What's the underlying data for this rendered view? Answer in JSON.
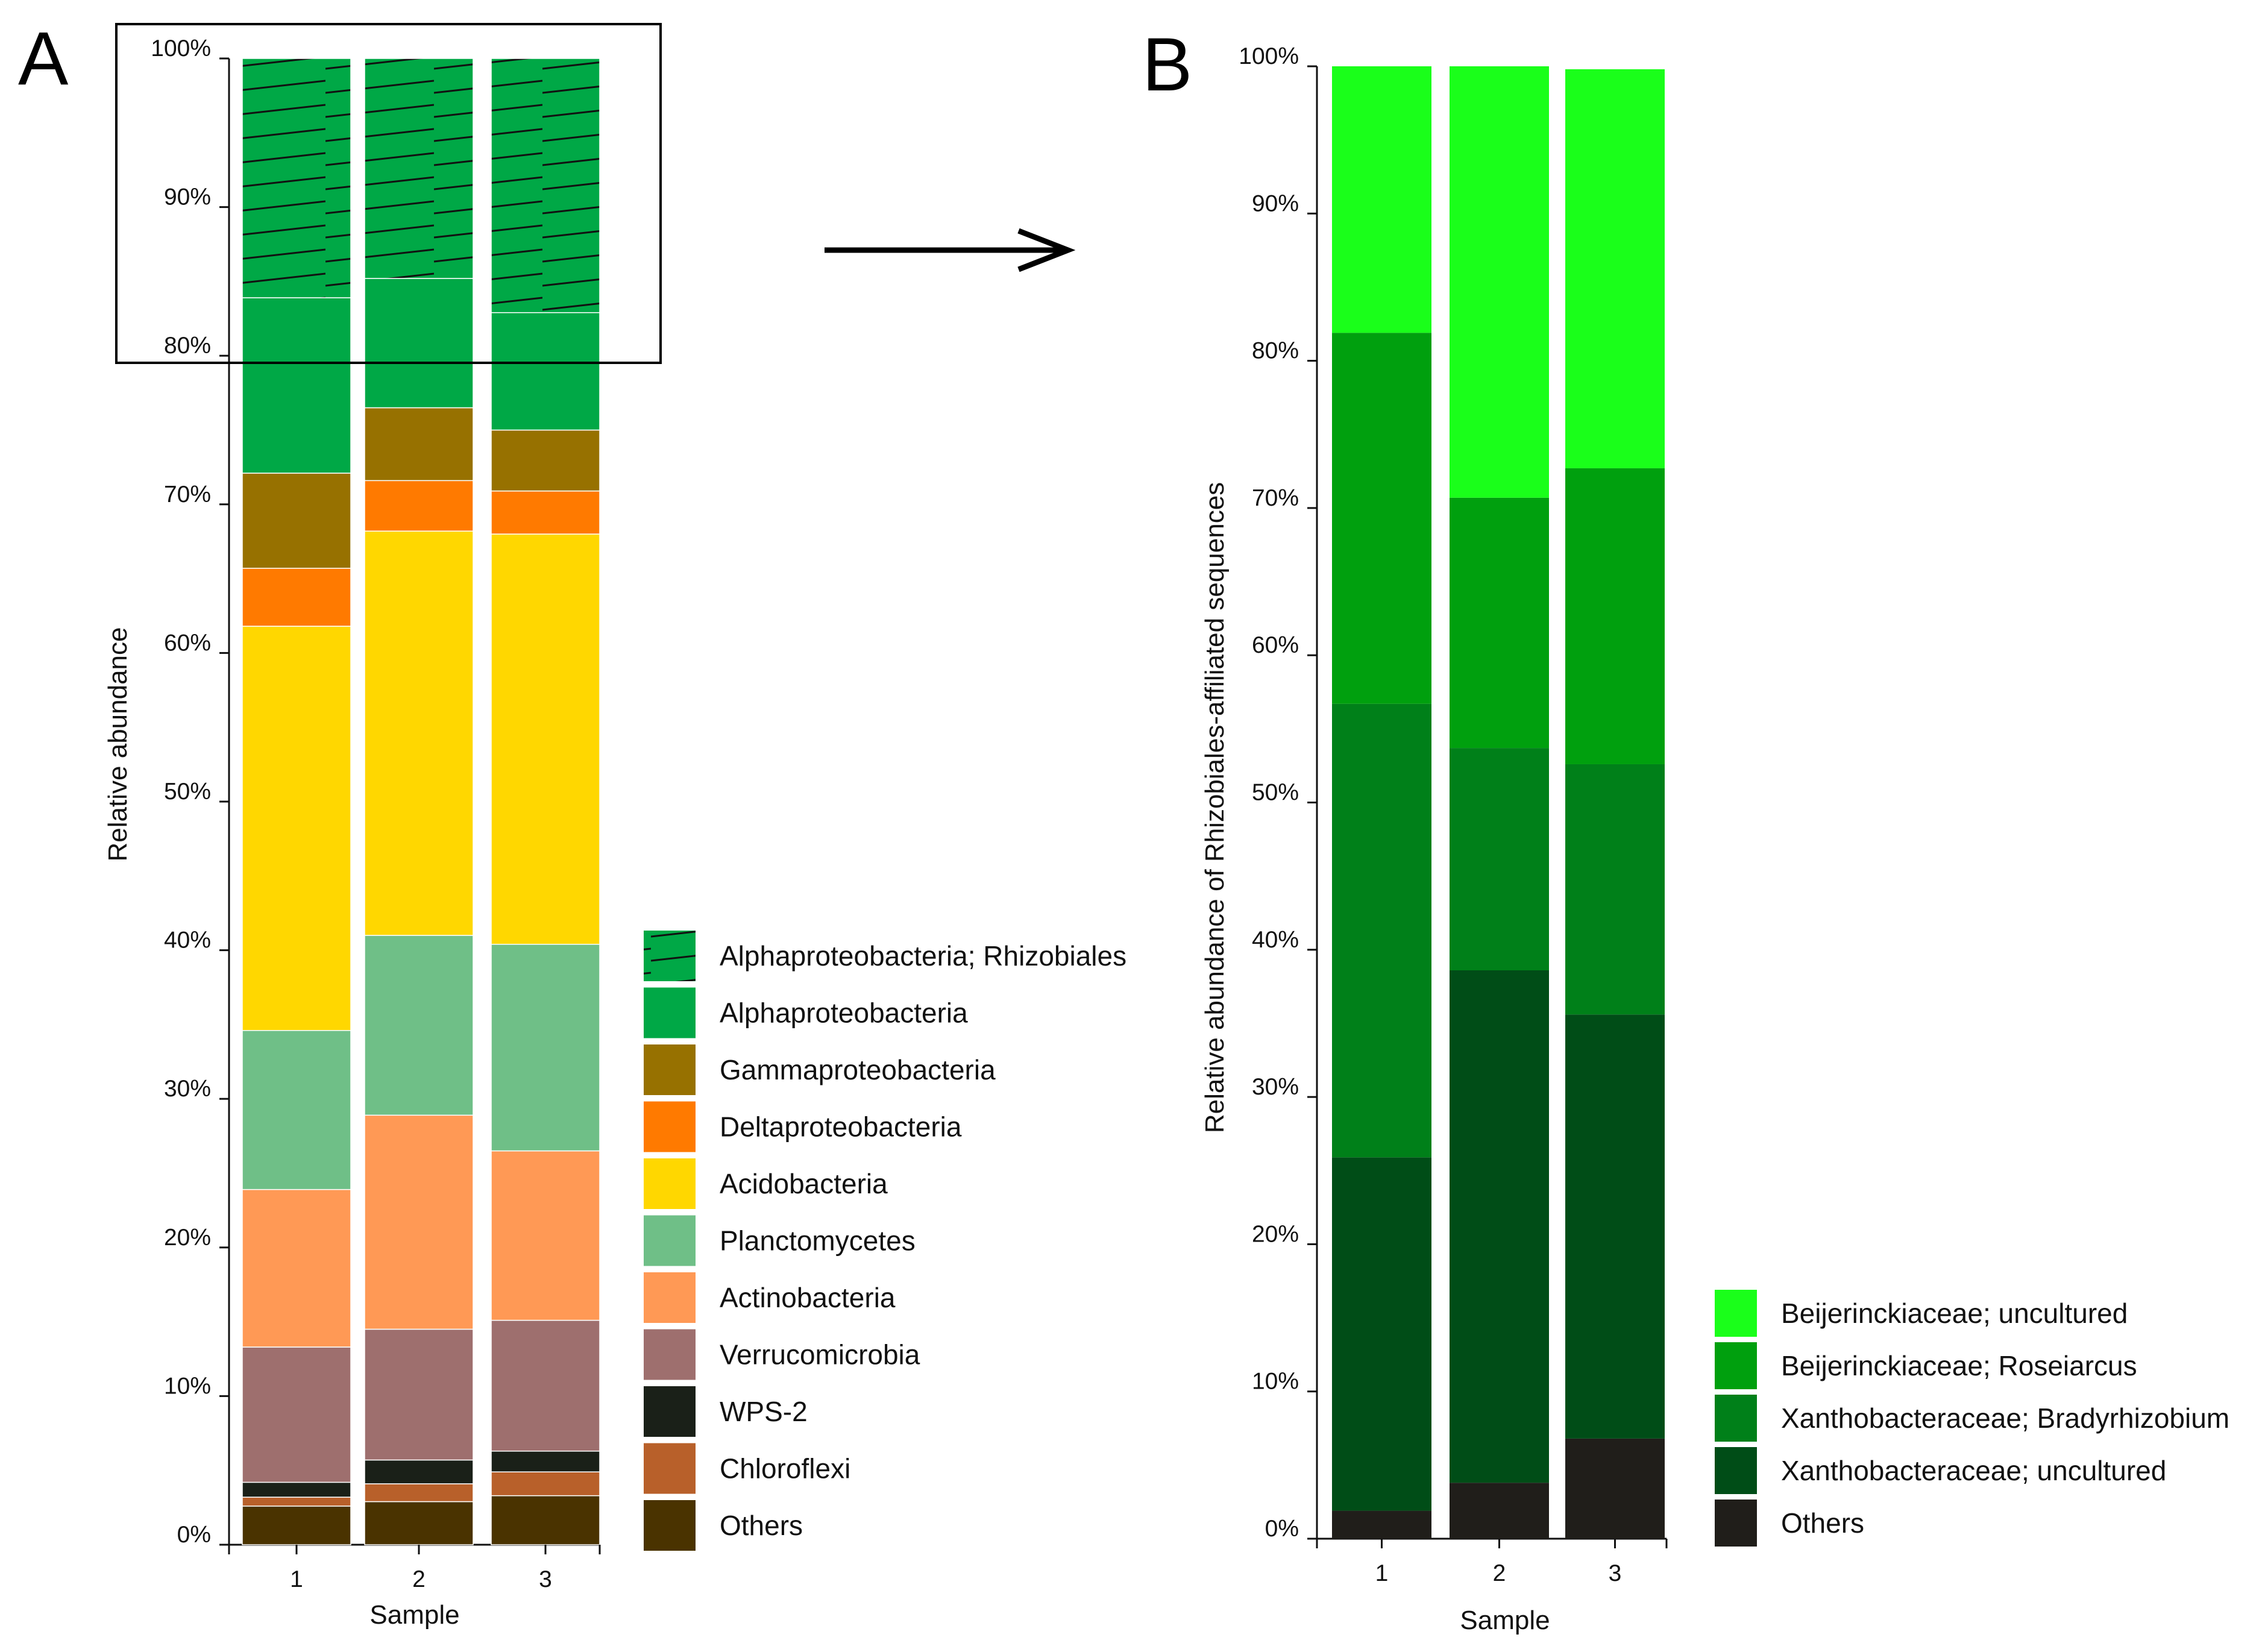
{
  "chart_data": [
    {
      "panel": "A",
      "type": "bar",
      "stacked": true,
      "xlabel": "Sample",
      "ylabel": "Relative abundance",
      "ylim": [
        0,
        100
      ],
      "yticks": [
        "0%",
        "10%",
        "20%",
        "30%",
        "40%",
        "50%",
        "60%",
        "70%",
        "80%",
        "90%",
        "100%"
      ],
      "categories": [
        "1",
        "2",
        "3"
      ],
      "series": [
        {
          "name": "Others",
          "color": "#4a3300",
          "values": [
            2.6,
            2.9,
            3.3
          ]
        },
        {
          "name": "Chloroflexi",
          "color": "#b8602a",
          "values": [
            0.6,
            1.2,
            1.6
          ]
        },
        {
          "name": "WPS-2",
          "color": "#1a2018",
          "values": [
            1.0,
            1.6,
            1.4
          ]
        },
        {
          "name": "Verrucomicrobia",
          "color": "#9e6f6e",
          "values": [
            9.1,
            8.8,
            8.8
          ]
        },
        {
          "name": "Actinobacteria",
          "color": "#ff9955",
          "values": [
            10.6,
            14.4,
            11.4
          ]
        },
        {
          "name": "Planctomycetes",
          "color": "#6fbf87",
          "values": [
            10.7,
            12.1,
            13.9
          ]
        },
        {
          "name": "Acidobacteria",
          "color": "#ffd700",
          "values": [
            27.2,
            27.2,
            27.6
          ]
        },
        {
          "name": "Deltaproteobacteria",
          "color": "#ff7a00",
          "values": [
            3.9,
            3.4,
            2.9
          ]
        },
        {
          "name": "Gammaproteobacteria",
          "color": "#977100",
          "values": [
            6.4,
            4.9,
            4.1
          ]
        },
        {
          "name": "Alphaproteobacteria",
          "color": "#00a846",
          "values": [
            11.8,
            8.7,
            7.9
          ]
        },
        {
          "name": "Alphaproteobacteria; Rhizobiales",
          "color": "#00a846",
          "hatched": true,
          "values": [
            16.1,
            14.8,
            17.1
          ]
        }
      ],
      "legend": [
        "Alphaproteobacteria; Rhizobiales",
        "Alphaproteobacteria",
        "Gammaproteobacteria",
        "Deltaproteobacteria",
        "Acidobacteria",
        "Planctomycetes",
        "Actinobacteria",
        "Verrucomicrobia",
        "WPS-2",
        "Chloroflexi",
        "Others"
      ]
    },
    {
      "panel": "B",
      "type": "bar",
      "stacked": true,
      "xlabel": "Sample",
      "ylabel": "Relative abundance of Rhizobiales-affiliated sequences",
      "ylim": [
        0,
        100
      ],
      "yticks": [
        "0%",
        "10%",
        "20%",
        "30%",
        "40%",
        "50%",
        "60%",
        "70%",
        "80%",
        "90%",
        "100%"
      ],
      "categories": [
        "1",
        "2",
        "3"
      ],
      "series": [
        {
          "name": "Others",
          "color": "#201e1a",
          "values": [
            1.9,
            3.8,
            6.8
          ]
        },
        {
          "name": "Xanthobacteraceae; uncultured",
          "color": "#004d17",
          "values": [
            24.0,
            34.8,
            28.8
          ]
        },
        {
          "name": "Xanthobacteraceae; Bradyrhizobium",
          "color": "#008019",
          "values": [
            30.8,
            15.1,
            17.0
          ]
        },
        {
          "name": "Beijerinckiaceae; Roseiarcus",
          "color": "#00a00e",
          "values": [
            25.2,
            17.0,
            20.1
          ]
        },
        {
          "name": "Beijerinckiaceae; uncultured",
          "color": "#1aff1a",
          "values": [
            18.1,
            29.3,
            27.1
          ]
        }
      ],
      "legend": [
        "Beijerinckiaceae; uncultured",
        "Beijerinckiaceae; Roseiarcus",
        "Xanthobacteraceae; Bradyrhizobium",
        "Xanthobacteraceae; uncultured",
        "Others"
      ]
    }
  ]
}
